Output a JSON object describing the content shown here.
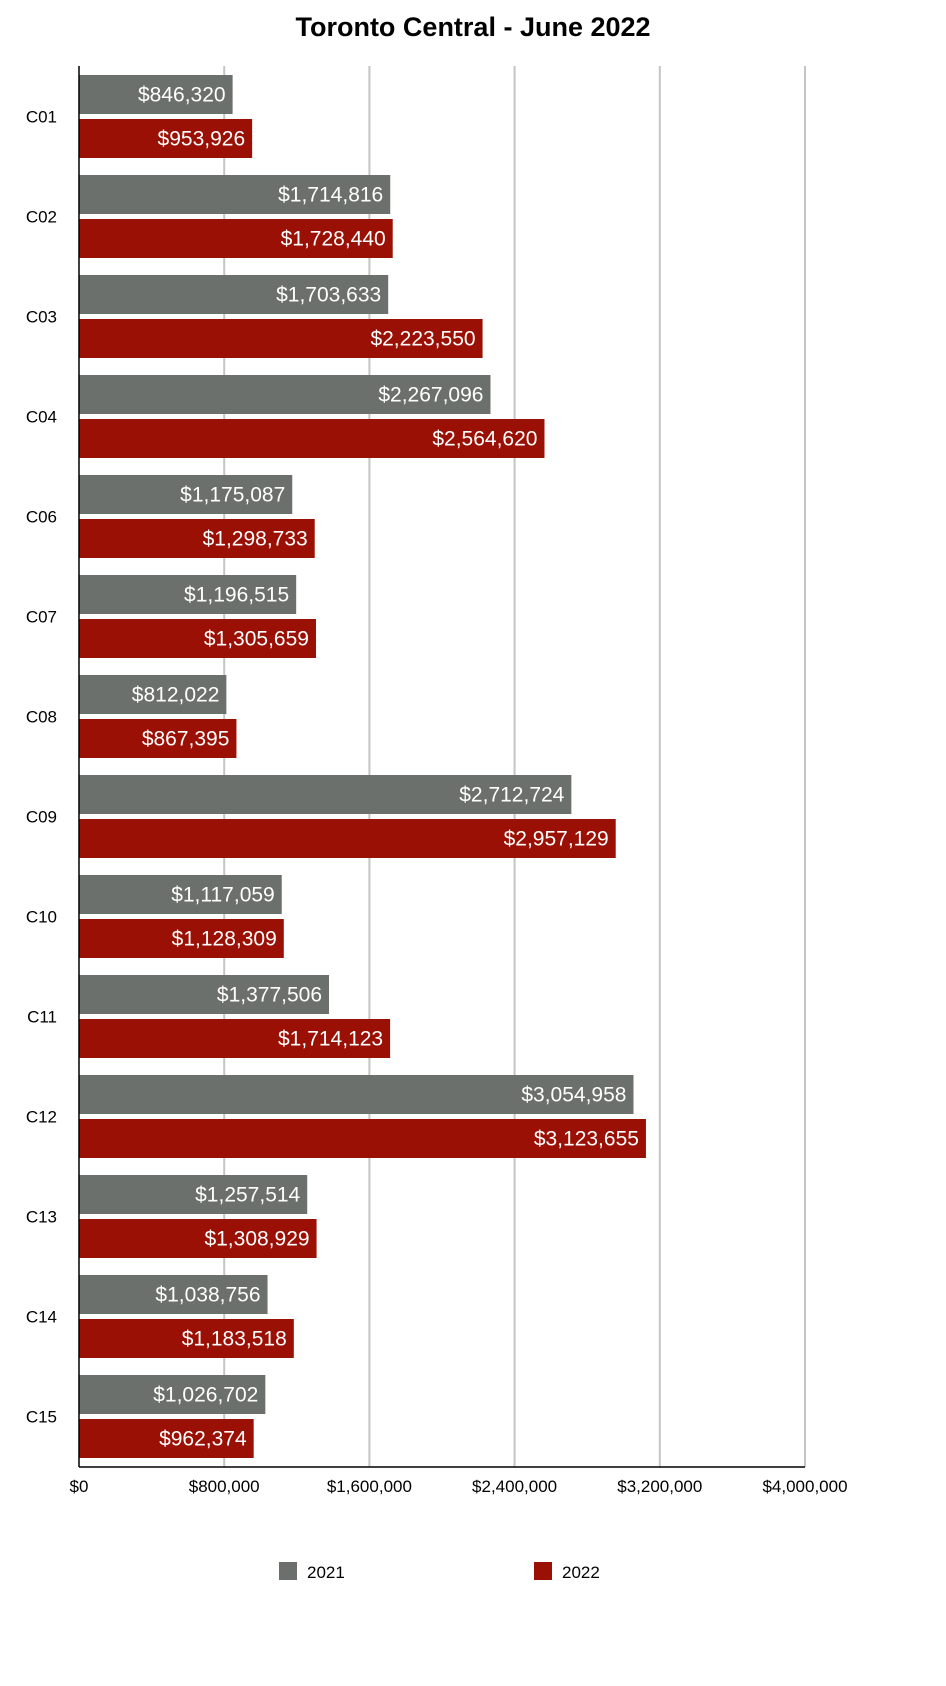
{
  "chart_data": {
    "type": "bar",
    "orientation": "horizontal",
    "title": "Toronto Central - June 2022",
    "xlabel": "",
    "ylabel": "",
    "categories": [
      "C01",
      "C02",
      "C03",
      "C04",
      "C06",
      "C07",
      "C08",
      "C09",
      "C10",
      "C11",
      "C12",
      "C13",
      "C14",
      "C15"
    ],
    "series": [
      {
        "name": "2021",
        "color": "#6b706d",
        "values": [
          846320,
          1714816,
          1703633,
          2267096,
          1175087,
          1196515,
          812022,
          2712724,
          1117059,
          1377506,
          3054958,
          1257514,
          1038756,
          1026702
        ],
        "labels": [
          "$846,320",
          "$1,714,816",
          "$1,703,633",
          "$2,267,096",
          "$1,175,087",
          "$1,196,515",
          "$812,022",
          "$2,712,724",
          "$1,117,059",
          "$1,377,506",
          "$3,054,958",
          "$1,257,514",
          "$1,038,756",
          "$1,026,702"
        ]
      },
      {
        "name": "2022",
        "color": "#9a1005",
        "values": [
          953926,
          1728440,
          2223550,
          2564620,
          1298733,
          1305659,
          867395,
          2957129,
          1128309,
          1714123,
          3123655,
          1308929,
          1183518,
          962374
        ],
        "labels": [
          "$953,926",
          "$1,728,440",
          "$2,223,550",
          "$2,564,620",
          "$1,298,733",
          "$1,305,659",
          "$867,395",
          "$2,957,129",
          "$1,128,309",
          "$1,714,123",
          "$3,123,655",
          "$1,308,929",
          "$1,183,518",
          "$962,374"
        ]
      }
    ],
    "xlim": [
      0,
      4000000
    ],
    "ticks": [
      0,
      800000,
      1600000,
      2400000,
      3200000,
      4000000
    ],
    "tick_labels": [
      "$0",
      "$800,000",
      "$1,600,000",
      "$2,400,000",
      "$3,200,000",
      "$4,000,000"
    ],
    "grid": true,
    "legend_position": "bottom"
  }
}
